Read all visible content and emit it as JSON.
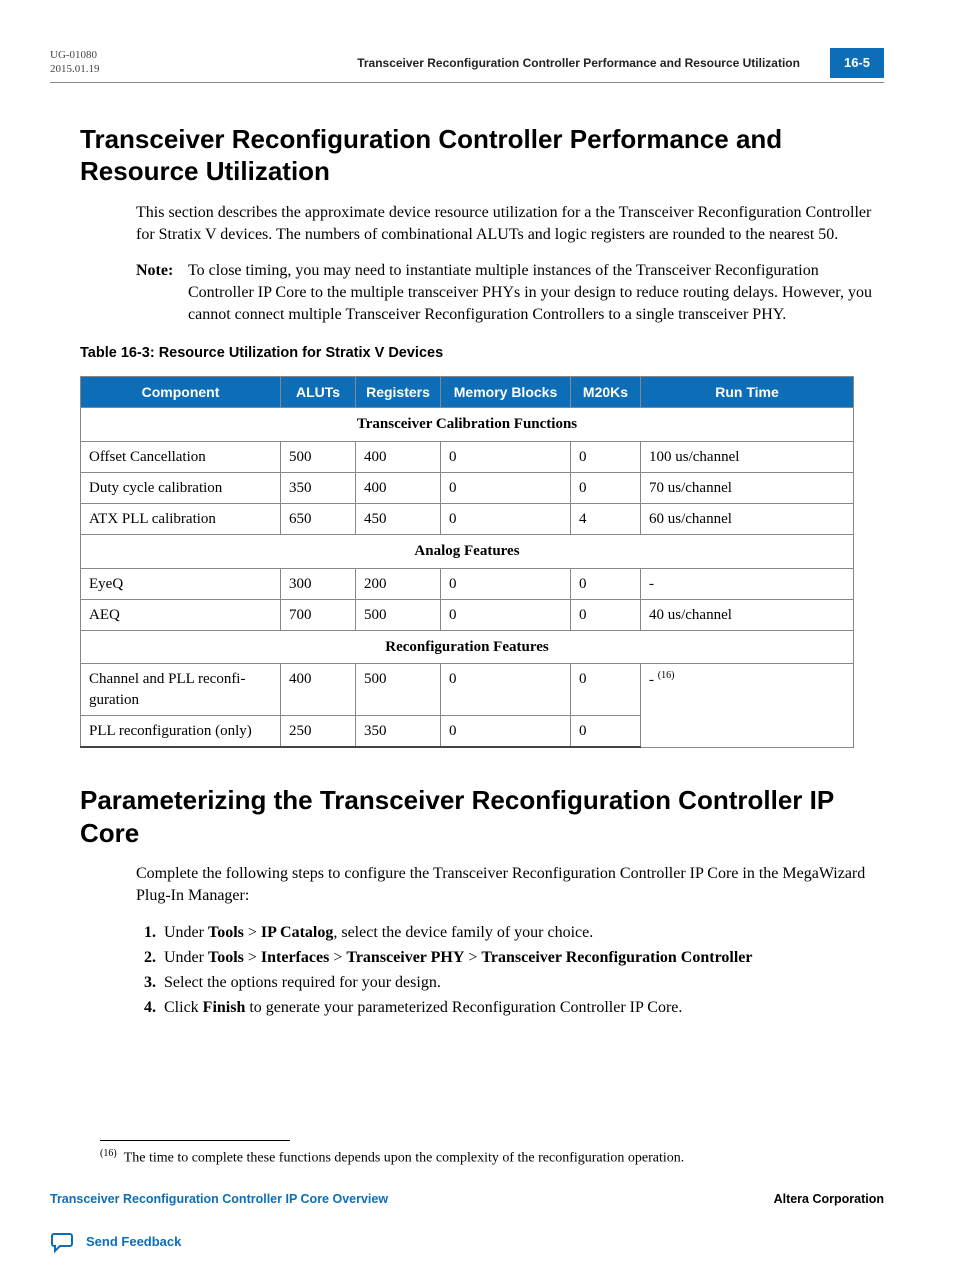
{
  "header": {
    "doc_id": "UG-01080",
    "date": "2015.01.19",
    "running_title": "Transceiver Reconfiguration Controller Performance and Resource Utilization",
    "page_num": "16-5"
  },
  "section1": {
    "title": "Transceiver Reconfiguration Controller Performance and Resource Utilization",
    "intro": "This section describes the approximate device resource utilization for a the Transceiver Reconfiguration Controller for Stratix V devices. The numbers of combinational ALUTs and logic registers are rounded to the nearest 50.",
    "note_label": "Note:",
    "note": "To close timing, you may need to instantiate multiple instances of the Transceiver Reconfiguration Controller IP Core to the multiple transceiver PHYs in your design to reduce routing delays. However, you cannot connect multiple Transceiver Reconfiguration Controllers to a single transceiver PHY."
  },
  "table": {
    "caption": "Table 16-3: Resource Utilization for Stratix V Devices",
    "columns": [
      "Component",
      "ALUTs",
      "Registers",
      "Memory Blocks",
      "M20Ks",
      "Run Time"
    ],
    "groups": [
      {
        "label": "Transceiver Calibration Functions",
        "rows": [
          [
            "Offset Cancellation",
            "500",
            "400",
            "0",
            "0",
            "100 us/channel"
          ],
          [
            "Duty cycle calibration",
            "350",
            "400",
            "0",
            "0",
            "70 us/channel"
          ],
          [
            "ATX PLL calibration",
            "650",
            "450",
            "0",
            "4",
            "60 us/channel"
          ]
        ]
      },
      {
        "label": "Analog Features",
        "rows": [
          [
            "EyeQ",
            "300",
            "200",
            "0",
            "0",
            "-"
          ],
          [
            "AEQ",
            "700",
            "500",
            "0",
            "0",
            "40 us/channel"
          ]
        ]
      },
      {
        "label": "Reconfiguration Features",
        "rows": [
          [
            "Channel and PLL reconfi­guration",
            "400",
            "500",
            "0",
            "0",
            "_ (16)"
          ],
          [
            "PLL reconfiguration (only)",
            "250",
            "350",
            "0",
            "0",
            ""
          ]
        ],
        "rowspan_last": true
      }
    ]
  },
  "section2": {
    "title": "Parameterizing the Transceiver Reconfiguration Controller IP Core",
    "intro": "Complete the following steps to configure the Transceiver Reconfiguration Controller IP Core in the MegaWizard Plug-In Manager:",
    "steps_plain": [
      "Under Tools > IP Catalog, select the device family of your choice.",
      "Under Tools > Interfaces > Transceiver PHY > Transceiver Reconfiguration Controller",
      "Select the options required for your design.",
      "Click Finish to generate your parameterized Reconfiguration Controller IP Core."
    ],
    "bold_terms": [
      "Tools",
      "IP Catalog",
      "Interfaces",
      "Transceiver PHY",
      "Transceiver Reconfiguration Controller",
      "Finish"
    ]
  },
  "footnote": {
    "num": "(16)",
    "text": "The time to complete these functions depends upon the complexity of the reconfiguration operation."
  },
  "footer": {
    "left": "Transceiver Reconfiguration Controller IP Core Overview",
    "right": "Altera Corporation",
    "feedback": "Send Feedback"
  },
  "colors": {
    "brand": "#0d6eb7",
    "rule": "#888888"
  }
}
